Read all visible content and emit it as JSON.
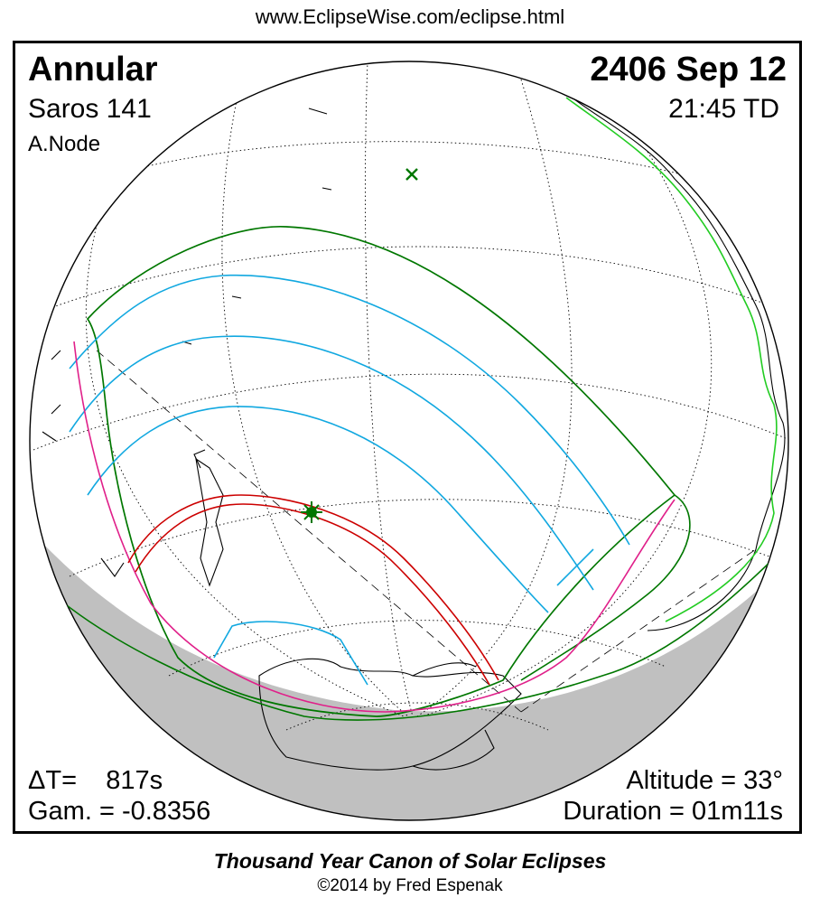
{
  "header": {
    "url": "www.EclipseWise.com/eclipse.html"
  },
  "eclipse": {
    "type": "Annular",
    "saros": "Saros 141",
    "node": "A.Node",
    "date": "2406 Sep 12",
    "time": "21:45 TD"
  },
  "stats": {
    "delta_t": "ΔT=    817s",
    "gamma": "Gam. = -0.8356",
    "altitude": "Altitude = 33°",
    "duration": "Duration = 01m11s"
  },
  "footer": {
    "title": "Thousand Year Canon of Solar Eclipses",
    "copyright": "©2014 by Fred Espenak"
  },
  "colors": {
    "central_path": "#cc0000",
    "penumbral_limits": "#007700",
    "partial_magnitude": "#11a8e0",
    "rise_set": "#e0208a",
    "night_shade": "#c0c0c0",
    "coast": "#000000",
    "terminator_coast": "#22cc22"
  },
  "markers": {
    "greatest_eclipse": "star-marker",
    "subsolar_point": "x-marker"
  }
}
